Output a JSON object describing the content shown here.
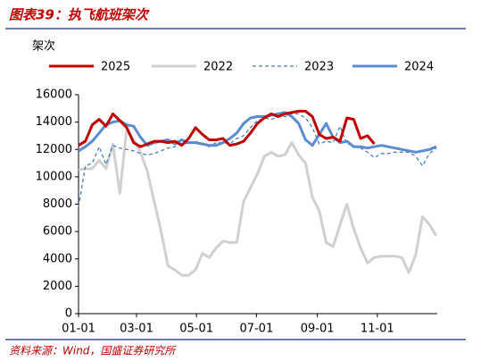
{
  "chart_data": {
    "type": "line",
    "title": "图表39：执飞航班架次",
    "y_label": "架次",
    "source": "资料来源：Wind，国盛证券研究所",
    "x": [
      0,
      7,
      14,
      21,
      28,
      35,
      42,
      49,
      56,
      63,
      70,
      77,
      84,
      91,
      98,
      105,
      112,
      119,
      126,
      133,
      140,
      147,
      154,
      161,
      168,
      175,
      182,
      189,
      196,
      203,
      210,
      217,
      224,
      231,
      238,
      245,
      252,
      259,
      266,
      273,
      280,
      287,
      294,
      301,
      308,
      315,
      322,
      329,
      336,
      343,
      350,
      357,
      364
    ],
    "xlim": [
      0,
      365
    ],
    "xticks": [
      {
        "value": 0,
        "label": "01-01"
      },
      {
        "value": 59,
        "label": "03-01"
      },
      {
        "value": 120,
        "label": "05-01"
      },
      {
        "value": 181,
        "label": "07-01"
      },
      {
        "value": 243,
        "label": "09-01"
      },
      {
        "value": 304,
        "label": "11-01"
      }
    ],
    "ylim": [
      0,
      16000
    ],
    "yticks": [
      0,
      2000,
      4000,
      6000,
      8000,
      10000,
      12000,
      14000,
      16000
    ],
    "series": [
      {
        "name": "2025",
        "color": "#c00000",
        "width": 3,
        "dashed": false,
        "values": [
          12300,
          12600,
          13800,
          14200,
          13700,
          14600,
          14100,
          13600,
          12500,
          12200,
          12400,
          12600,
          12600,
          12500,
          12600,
          12300,
          12800,
          13600,
          13100,
          12700,
          12700,
          12800,
          12300,
          12400,
          12600,
          13200,
          13900,
          14300,
          14600,
          14400,
          14600,
          14700,
          14800,
          14800,
          14400,
          13100,
          12800,
          12900,
          12600,
          14300,
          14200,
          12800,
          13000,
          12400,
          null,
          null,
          null,
          null,
          null,
          null,
          null,
          null,
          null
        ]
      },
      {
        "name": "2022",
        "color": "#d0d0d0",
        "width": 3,
        "dashed": false,
        "values": [
          10500,
          10600,
          10600,
          11200,
          10600,
          12400,
          8800,
          13500,
          12700,
          11800,
          10400,
          8200,
          6000,
          3500,
          3200,
          2800,
          2800,
          3200,
          4400,
          4100,
          4800,
          5300,
          5200,
          5200,
          8200,
          9200,
          10200,
          11500,
          11800,
          11500,
          11600,
          12500,
          11600,
          11000,
          8500,
          7500,
          5200,
          4900,
          6500,
          8000,
          6200,
          4800,
          3700,
          4100,
          4200,
          4200,
          4200,
          4100,
          3000,
          4300,
          7100,
          6500,
          5700
        ]
      },
      {
        "name": "2023",
        "color": "#4a7ebb",
        "width": 1.3,
        "dashed": true,
        "values": [
          7800,
          10800,
          11000,
          12200,
          10900,
          12300,
          12100,
          12000,
          11900,
          11700,
          11600,
          11700,
          11900,
          12100,
          12200,
          12500,
          12400,
          12600,
          12400,
          12200,
          12500,
          12500,
          12400,
          12800,
          13000,
          13600,
          14100,
          14300,
          14200,
          14400,
          14400,
          14600,
          14600,
          14300,
          13600,
          12400,
          12600,
          12500,
          13700,
          12400,
          12300,
          12100,
          11800,
          11400,
          11700,
          11700,
          11800,
          11800,
          11800,
          11500,
          10800,
          11700,
          12100
        ]
      },
      {
        "name": "2024",
        "color": "#5b8bd0",
        "width": 3,
        "dashed": false,
        "values": [
          11900,
          12200,
          12600,
          13200,
          13800,
          14000,
          14100,
          13800,
          13700,
          12900,
          12300,
          12500,
          12600,
          12700,
          12400,
          12700,
          12500,
          12500,
          12400,
          12300,
          12300,
          12500,
          12800,
          13200,
          13900,
          14300,
          14400,
          14400,
          14500,
          14600,
          14700,
          14400,
          13900,
          12700,
          12300,
          13100,
          13900,
          12900,
          12500,
          12600,
          12200,
          12200,
          12100,
          12200,
          12300,
          12200,
          12100,
          12000,
          11900,
          11800,
          11900,
          12000,
          12200
        ]
      }
    ]
  }
}
